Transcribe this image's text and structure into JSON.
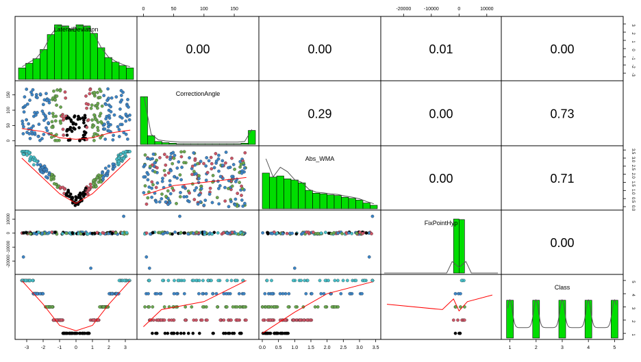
{
  "chart_data": {
    "type": "scatter_matrix",
    "title": "",
    "variables": [
      "LateralDeviation",
      "CorrectionAngle",
      "Abs_WMA",
      "FixPointHyp",
      "Class"
    ],
    "axis_ticks": {
      "LateralDeviation": [
        "-3",
        "-2",
        "-1",
        "0",
        "1",
        "2",
        "3"
      ],
      "CorrectionAngle": [
        "0",
        "50",
        "100",
        "150"
      ],
      "Abs_WMA": [
        "0.0",
        "0.5",
        "1.0",
        "1.5",
        "2.0",
        "2.5",
        "3.0",
        "3.5"
      ],
      "FixPointHyp": [
        "-20000",
        "-10000",
        "0",
        "10000"
      ],
      "Class": [
        "1",
        "2",
        "3",
        "4",
        "5"
      ]
    },
    "ranges": {
      "LateralDeviation": [
        -3.5,
        3.5
      ],
      "CorrectionAngle": [
        -5,
        185
      ],
      "Abs_WMA": [
        0,
        3.55
      ],
      "FixPointHyp": [
        -27000,
        14000
      ],
      "Class": [
        0.8,
        5.2
      ]
    },
    "correlations": [
      {
        "row": 1,
        "col": 2,
        "value": "0.00"
      },
      {
        "row": 1,
        "col": 3,
        "value": "0.00"
      },
      {
        "row": 1,
        "col": 4,
        "value": "0.01"
      },
      {
        "row": 1,
        "col": 5,
        "value": "0.00"
      },
      {
        "row": 2,
        "col": 3,
        "value": "0.29"
      },
      {
        "row": 2,
        "col": 4,
        "value": "0.00"
      },
      {
        "row": 2,
        "col": 5,
        "value": "0.73"
      },
      {
        "row": 3,
        "col": 4,
        "value": "0.00"
      },
      {
        "row": 3,
        "col": 5,
        "value": "0.71"
      },
      {
        "row": 4,
        "col": 5,
        "value": "0.00"
      }
    ],
    "histograms": {
      "LateralDeviation": [
        0.2,
        0.28,
        0.36,
        0.52,
        0.78,
        0.95,
        0.93,
        0.88,
        0.95,
        0.93,
        0.8,
        0.55,
        0.38,
        0.3,
        0.24,
        0.2
      ],
      "CorrectionAngle": [
        0.82,
        0.15,
        0.05,
        0.03,
        0.02,
        0.01,
        0.01,
        0.01,
        0.01,
        0.01,
        0.01,
        0.01,
        0.01,
        0.01,
        0.02,
        0.24
      ],
      "Abs_WMA": [
        0.62,
        0.55,
        0.57,
        0.52,
        0.5,
        0.45,
        0.32,
        0.27,
        0.26,
        0.24,
        0.23,
        0.2,
        0.18,
        0.15,
        0.1,
        0.06
      ],
      "FixPointHyp": [
        0.0,
        0.94,
        0.93,
        0.0
      ],
      "Class": [
        0.65,
        0.65,
        0.65,
        0.65,
        0.65
      ]
    },
    "class_colors": {
      "1": "#000000",
      "2": "#cc5566",
      "3": "#6aa84f",
      "4": "#3d85c6",
      "5": "#46bdc6"
    },
    "hist_color": "#00dd00",
    "smooth_color": "#ff0000",
    "density_color": "#555555",
    "grid": false,
    "legend": "none"
  }
}
